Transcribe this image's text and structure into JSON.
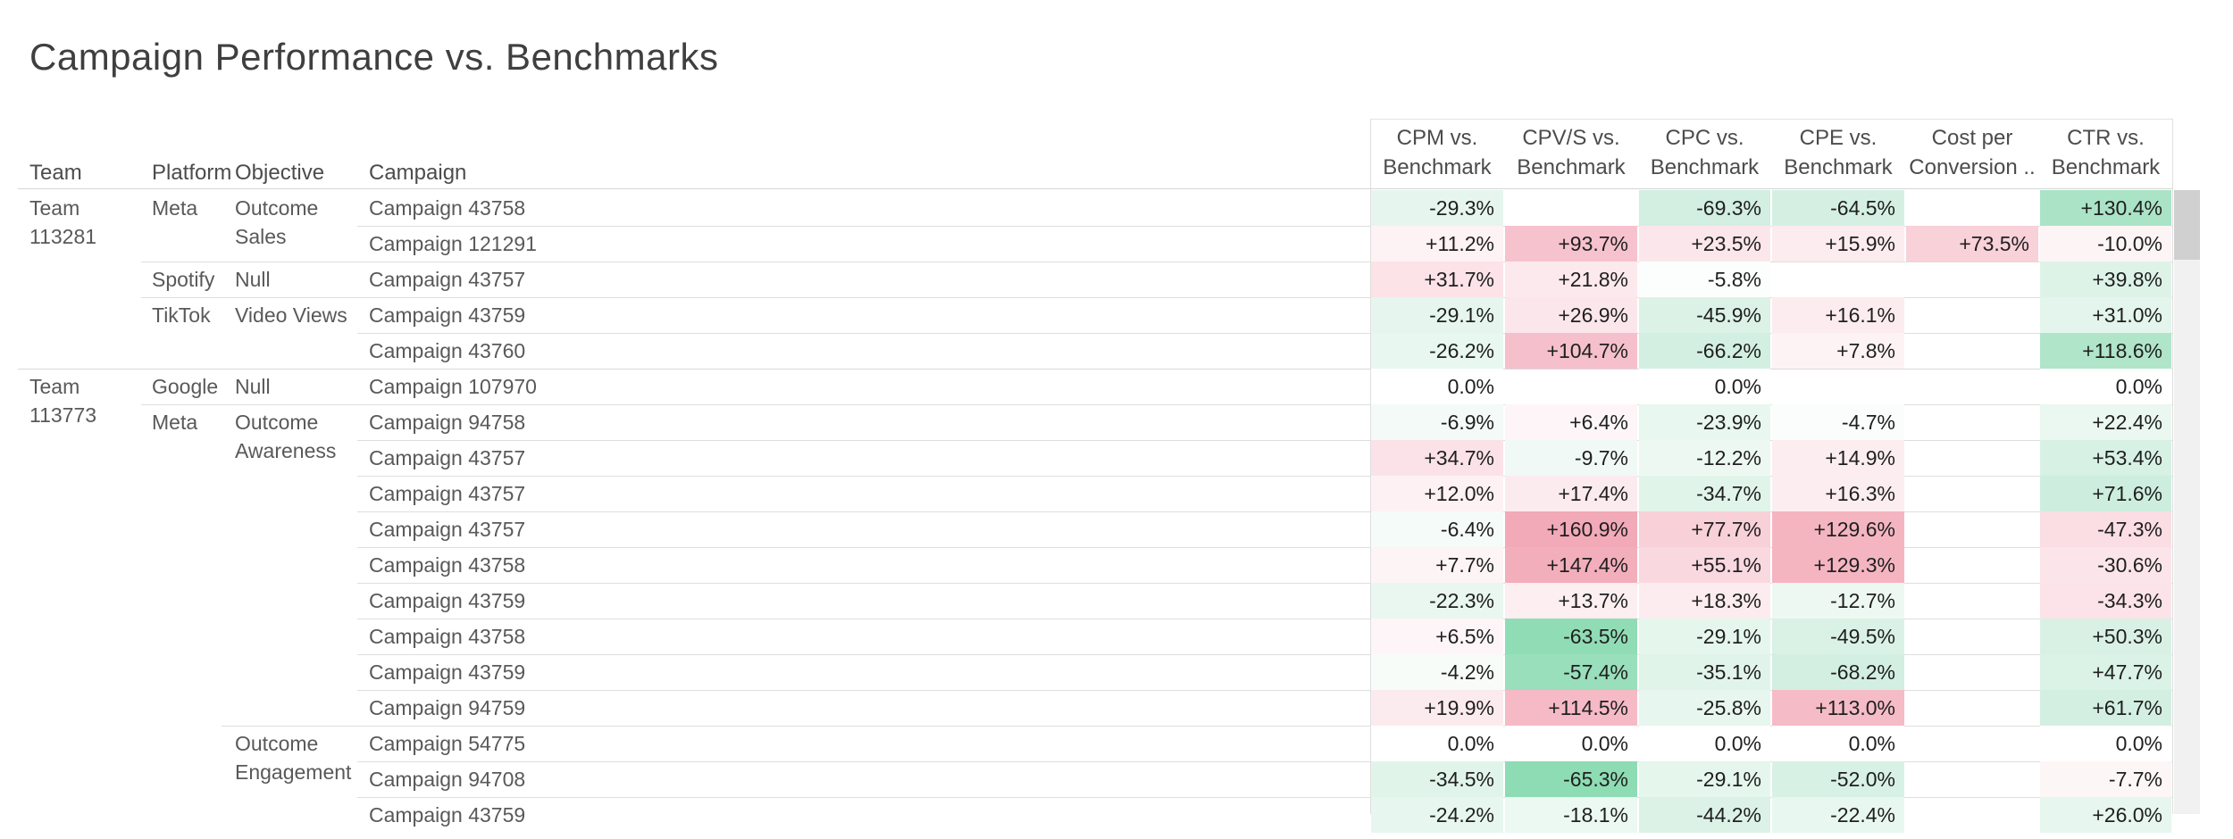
{
  "title": "Campaign Performance vs. Benchmarks",
  "table": {
    "dimension_headers": [
      "Team",
      "Platform",
      "Objective",
      "Campaign"
    ],
    "measure_headers": [
      {
        "line1": "CPM vs.",
        "line2": "Benchmark"
      },
      {
        "line1": "CPV/S vs.",
        "line2": "Benchmark"
      },
      {
        "line1": "CPC vs.",
        "line2": "Benchmark"
      },
      {
        "line1": "CPE vs.",
        "line2": "Benchmark"
      },
      {
        "line1": "Cost per",
        "line2": "Conversion .."
      },
      {
        "line1": "CTR vs.",
        "line2": "Benchmark"
      }
    ],
    "rows": [
      {
        "team": "Team 113281",
        "platform": "Meta",
        "objective": "Outcome Sales",
        "campaign": "Campaign 43758",
        "sep": "none",
        "values": [
          {
            "v": "-29.3%",
            "bg": "#e6f6ee"
          },
          null,
          {
            "v": "-69.3%",
            "bg": "#d2efe1"
          },
          {
            "v": "-64.5%",
            "bg": "#d5f0e2"
          },
          null,
          {
            "v": "+130.4%",
            "bg": "#abe3c7"
          }
        ]
      },
      {
        "team": null,
        "platform": null,
        "objective": null,
        "campaign": "Campaign 121291",
        "sep": "campaign",
        "values": [
          {
            "v": "+11.2%",
            "bg": "#fdf2f4"
          },
          {
            "v": "+93.7%",
            "bg": "#f6c2cd"
          },
          {
            "v": "+23.5%",
            "bg": "#fbe7eb"
          },
          {
            "v": "+15.9%",
            "bg": "#fcecef"
          },
          {
            "v": "+73.5%",
            "bg": "#f8d1d9"
          },
          {
            "v": "-10.0%",
            "bg": "#fdf4f6"
          }
        ]
      },
      {
        "team": null,
        "platform": "Spotify",
        "objective": "Null",
        "campaign": "Campaign 43757",
        "sep": "platform",
        "values": [
          {
            "v": "+31.7%",
            "bg": "#fbe3e8"
          },
          {
            "v": "+21.8%",
            "bg": "#fce9ed"
          },
          {
            "v": "-5.8%",
            "bg": "#fcfefd"
          },
          null,
          null,
          {
            "v": "+39.8%",
            "bg": "#def3e8"
          }
        ]
      },
      {
        "team": null,
        "platform": "TikTok",
        "objective": "Video Views",
        "campaign": "Campaign 43759",
        "sep": "platform",
        "values": [
          {
            "v": "-29.1%",
            "bg": "#e6f6ee"
          },
          {
            "v": "+26.9%",
            "bg": "#fbe7eb"
          },
          {
            "v": "-45.9%",
            "bg": "#dcf2e7"
          },
          {
            "v": "+16.1%",
            "bg": "#fcecef"
          },
          null,
          {
            "v": "+31.0%",
            "bg": "#e3f5ec"
          }
        ]
      },
      {
        "team": null,
        "platform": null,
        "objective": null,
        "campaign": "Campaign 43760",
        "sep": "campaign",
        "values": [
          {
            "v": "-26.2%",
            "bg": "#e8f7ef"
          },
          {
            "v": "+104.7%",
            "bg": "#f5c0cb"
          },
          {
            "v": "-66.2%",
            "bg": "#d3efe1"
          },
          {
            "v": "+7.8%",
            "bg": "#fdf3f5"
          },
          null,
          {
            "v": "+118.6%",
            "bg": "#b0e5ca"
          }
        ]
      },
      {
        "team": "Team 113773",
        "platform": "Google",
        "objective": "Null",
        "campaign": "Campaign 107970",
        "sep": "team",
        "values": [
          {
            "v": "0.0%",
            "bg": "#ffffff"
          },
          null,
          {
            "v": "0.0%",
            "bg": "#ffffff"
          },
          null,
          null,
          {
            "v": "0.0%",
            "bg": "#ffffff"
          }
        ]
      },
      {
        "team": null,
        "platform": "Meta",
        "objective": "Outcome Awareness",
        "campaign": "Campaign 94758",
        "sep": "platform",
        "values": [
          {
            "v": "-6.9%",
            "bg": "#f3faf7"
          },
          {
            "v": "+6.4%",
            "bg": "#fdf5f7"
          },
          {
            "v": "-23.9%",
            "bg": "#e8f7ef"
          },
          {
            "v": "-4.7%",
            "bg": "#fafdfb"
          },
          null,
          {
            "v": "+22.4%",
            "bg": "#eaf8f1"
          }
        ]
      },
      {
        "team": null,
        "platform": null,
        "objective": null,
        "campaign": "Campaign 43757",
        "sep": "campaign",
        "values": [
          {
            "v": "+34.7%",
            "bg": "#fbe2e8"
          },
          {
            "v": "-9.7%",
            "bg": "#f0f9f5"
          },
          {
            "v": "-12.2%",
            "bg": "#eef8f3"
          },
          {
            "v": "+14.9%",
            "bg": "#fcedf0"
          },
          null,
          {
            "v": "+53.4%",
            "bg": "#d8f1e5"
          }
        ]
      },
      {
        "team": null,
        "platform": null,
        "objective": null,
        "campaign": "Campaign 43757",
        "sep": "campaign",
        "values": [
          {
            "v": "+12.0%",
            "bg": "#fdf1f3"
          },
          {
            "v": "+17.4%",
            "bg": "#fcebee"
          },
          {
            "v": "-34.7%",
            "bg": "#e1f4ea"
          },
          {
            "v": "+16.3%",
            "bg": "#fcedf0"
          },
          null,
          {
            "v": "+71.6%",
            "bg": "#cdeede"
          }
        ]
      },
      {
        "team": null,
        "platform": null,
        "objective": null,
        "campaign": "Campaign 43757",
        "sep": "campaign",
        "values": [
          {
            "v": "-6.4%",
            "bg": "#f5fbf8"
          },
          {
            "v": "+160.9%",
            "bg": "#f2a9b8"
          },
          {
            "v": "+77.7%",
            "bg": "#f8d0d8"
          },
          {
            "v": "+129.6%",
            "bg": "#f4b5c1"
          },
          null,
          {
            "v": "-47.3%",
            "bg": "#fbdde4"
          }
        ]
      },
      {
        "team": null,
        "platform": null,
        "objective": null,
        "campaign": "Campaign 43758",
        "sep": "campaign",
        "values": [
          {
            "v": "+7.7%",
            "bg": "#fdf4f6"
          },
          {
            "v": "+147.4%",
            "bg": "#f3aebb"
          },
          {
            "v": "+55.1%",
            "bg": "#f9d8df"
          },
          {
            "v": "+129.3%",
            "bg": "#f4b5c1"
          },
          null,
          {
            "v": "-30.6%",
            "bg": "#fbe5ea"
          }
        ]
      },
      {
        "team": null,
        "platform": null,
        "objective": null,
        "campaign": "Campaign 43759",
        "sep": "campaign",
        "values": [
          {
            "v": "-22.3%",
            "bg": "#e9f7f0"
          },
          {
            "v": "+13.7%",
            "bg": "#fceef1"
          },
          {
            "v": "+18.3%",
            "bg": "#fcecef"
          },
          {
            "v": "-12.7%",
            "bg": "#eef8f3"
          },
          null,
          {
            "v": "-34.3%",
            "bg": "#fbe3e9"
          }
        ]
      },
      {
        "team": null,
        "platform": null,
        "objective": null,
        "campaign": "Campaign 43758",
        "sep": "campaign",
        "values": [
          {
            "v": "+6.5%",
            "bg": "#fdf5f7"
          },
          {
            "v": "-63.5%",
            "bg": "#90dcb5"
          },
          {
            "v": "-29.1%",
            "bg": "#e5f6ed"
          },
          {
            "v": "-49.5%",
            "bg": "#daf2e6"
          },
          null,
          {
            "v": "+50.3%",
            "bg": "#d9f1e5"
          }
        ]
      },
      {
        "team": null,
        "platform": null,
        "objective": null,
        "campaign": "Campaign 43759",
        "sep": "campaign",
        "values": [
          {
            "v": "-4.2%",
            "bg": "#f7fcf9"
          },
          {
            "v": "-57.4%",
            "bg": "#99dfbb"
          },
          {
            "v": "-35.1%",
            "bg": "#e1f4ea"
          },
          {
            "v": "-68.2%",
            "bg": "#d3efe1"
          },
          null,
          {
            "v": "+47.7%",
            "bg": "#dbf2e6"
          }
        ]
      },
      {
        "team": null,
        "platform": null,
        "objective": null,
        "campaign": "Campaign 94759",
        "sep": "campaign",
        "values": [
          {
            "v": "+19.9%",
            "bg": "#fcebee"
          },
          {
            "v": "+114.5%",
            "bg": "#f5bac6"
          },
          {
            "v": "-25.8%",
            "bg": "#e7f6ee"
          },
          {
            "v": "+113.0%",
            "bg": "#f5bbc6"
          },
          null,
          {
            "v": "+61.7%",
            "bg": "#d3efe1"
          }
        ]
      },
      {
        "team": null,
        "platform": null,
        "objective": "Outcome Engagement",
        "campaign": "Campaign 54775",
        "sep": "objective",
        "values": [
          {
            "v": "0.0%",
            "bg": "#ffffff"
          },
          {
            "v": "0.0%",
            "bg": "#ffffff"
          },
          {
            "v": "0.0%",
            "bg": "#ffffff"
          },
          {
            "v": "0.0%",
            "bg": "#ffffff"
          },
          null,
          {
            "v": "0.0%",
            "bg": "#ffffff"
          }
        ]
      },
      {
        "team": null,
        "platform": null,
        "objective": null,
        "campaign": "Campaign 94708",
        "sep": "campaign",
        "values": [
          {
            "v": "-34.5%",
            "bg": "#e1f4ea"
          },
          {
            "v": "-65.3%",
            "bg": "#8edcb4"
          },
          {
            "v": "-29.1%",
            "bg": "#e5f6ed"
          },
          {
            "v": "-52.0%",
            "bg": "#d8f1e5"
          },
          null,
          {
            "v": "-7.7%",
            "bg": "#fdf6f7"
          }
        ]
      },
      {
        "team": null,
        "platform": null,
        "objective": null,
        "campaign": "Campaign 43759",
        "sep": "campaign",
        "values": [
          {
            "v": "-24.2%",
            "bg": "#e7f6ee"
          },
          {
            "v": "-18.1%",
            "bg": "#ecf8f2"
          },
          {
            "v": "-44.2%",
            "bg": "#dcf2e7"
          },
          {
            "v": "-22.4%",
            "bg": "#e8f7ef"
          },
          null,
          {
            "v": "+26.0%",
            "bg": "#e7f6ee"
          }
        ]
      }
    ]
  }
}
